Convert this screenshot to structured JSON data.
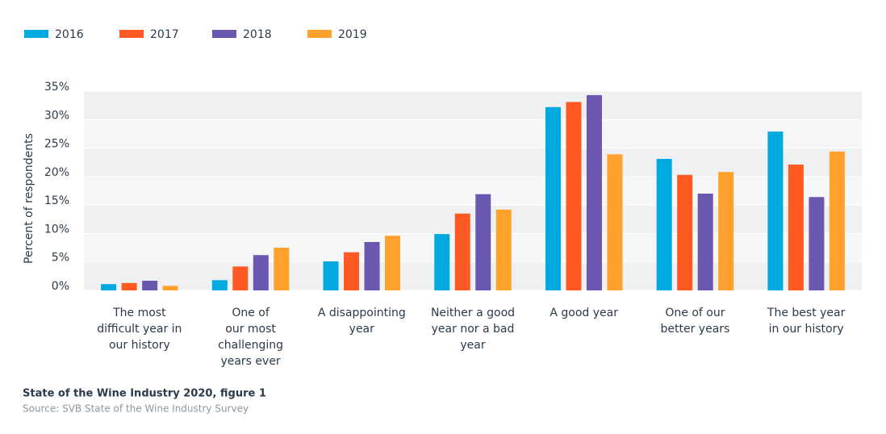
{
  "chart_data": {
    "type": "bar",
    "categories": [
      [
        "The most",
        "difficult year in",
        "our history"
      ],
      [
        "One of",
        "our most",
        "challenging",
        "years ever"
      ],
      [
        "A disappointing",
        "year"
      ],
      [
        "Neither a good",
        "year nor a bad",
        "year"
      ],
      [
        "A good year"
      ],
      [
        "One of our",
        "better years"
      ],
      [
        "The best year",
        "in our history"
      ]
    ],
    "series": [
      {
        "name": "2016",
        "color": "#00a9e0",
        "values": [
          1.1,
          1.8,
          5.1,
          9.9,
          32.2,
          23.1,
          27.9
        ]
      },
      {
        "name": "2017",
        "color": "#ff5a22",
        "values": [
          1.3,
          4.2,
          6.7,
          13.5,
          33.1,
          20.3,
          22.1
        ]
      },
      {
        "name": "2018",
        "color": "#6b57b0",
        "values": [
          1.7,
          6.2,
          8.5,
          16.9,
          34.3,
          17.0,
          16.4
        ]
      },
      {
        "name": "2019",
        "color": "#ffa12b",
        "values": [
          0.8,
          7.5,
          9.6,
          14.2,
          23.9,
          20.8,
          24.4
        ]
      }
    ],
    "y_label": "Percent of respondents",
    "ylim": [
      0,
      35
    ],
    "yticks": [
      {
        "value": 0,
        "label": "0%"
      },
      {
        "value": 5,
        "label": "5%"
      },
      {
        "value": 10,
        "label": "10%"
      },
      {
        "value": 15,
        "label": "15%"
      },
      {
        "value": 20,
        "label": "20%"
      },
      {
        "value": 25,
        "label": "25%"
      },
      {
        "value": 30,
        "label": "30%"
      },
      {
        "value": 35,
        "label": "35%"
      }
    ],
    "grid": true,
    "legend": "top-left",
    "caption": "State of the Wine Industry 2020, figure 1",
    "source": "Source: SVB State of the Wine Industry Survey"
  }
}
